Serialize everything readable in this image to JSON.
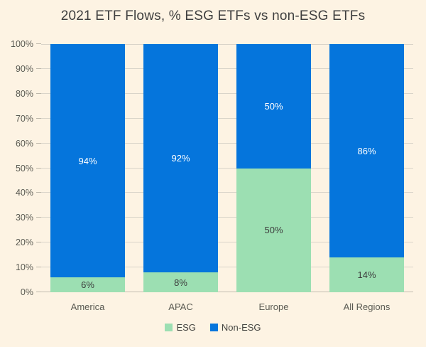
{
  "title": "2021 ETF Flows, % ESG ETFs vs non-ESG ETFs",
  "colors": {
    "background": "#fdf3e3",
    "esg": "#9cdfb2",
    "non_esg": "#0575dc",
    "gridline": "#d9d4c9",
    "axis_text": "#5a5a52",
    "title_text": "#3f3f3f",
    "label_on_esg": "#3c3c3c",
    "label_on_non_esg": "#ffffff"
  },
  "chart_data": {
    "type": "bar",
    "stacked": true,
    "title": "2021 ETF Flows, % ESG ETFs vs non-ESG ETFs",
    "categories": [
      "America",
      "APAC",
      "Europe",
      "All Regions"
    ],
    "series": [
      {
        "name": "ESG",
        "color_key": "esg",
        "label_color_key": "label_on_esg",
        "values": [
          6,
          8,
          50,
          14
        ],
        "labels": [
          "6%",
          "8%",
          "50%",
          "14%"
        ]
      },
      {
        "name": "Non-ESG",
        "color_key": "non_esg",
        "label_color_key": "label_on_non_esg",
        "values": [
          94,
          92,
          50,
          86
        ],
        "labels": [
          "94%",
          "92%",
          "50%",
          "86%"
        ]
      }
    ],
    "xlabel": "",
    "ylabel": "",
    "ylim": [
      0,
      100
    ],
    "y_ticks": [
      "0%",
      "10%",
      "20%",
      "30%",
      "40%",
      "50%",
      "60%",
      "70%",
      "80%",
      "90%",
      "100%"
    ],
    "grid": true,
    "legend_position": "bottom"
  },
  "legend": {
    "items": [
      {
        "label": "ESG",
        "color_key": "esg"
      },
      {
        "label": "Non-ESG",
        "color_key": "non_esg"
      }
    ]
  }
}
